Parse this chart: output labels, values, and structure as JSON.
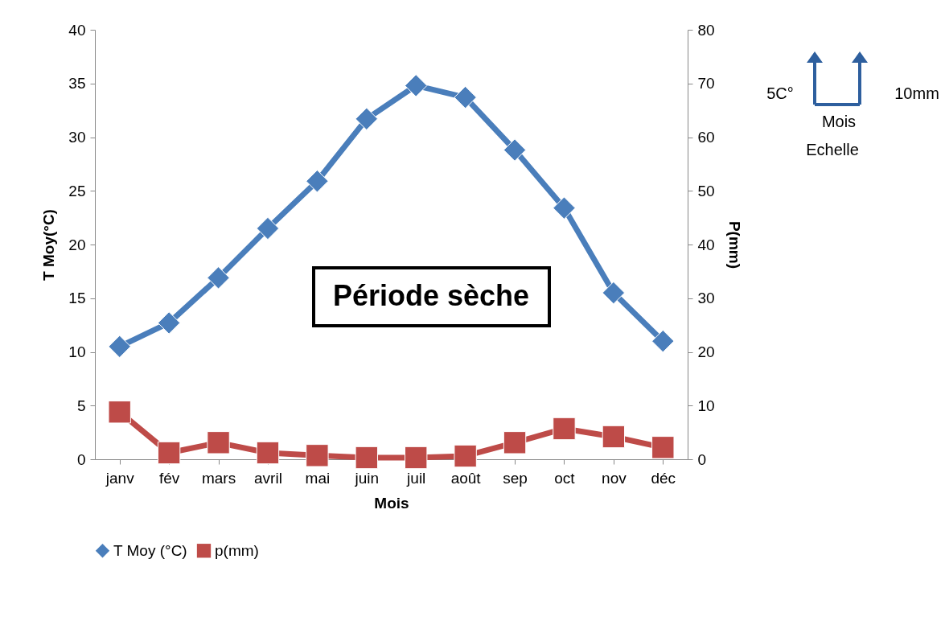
{
  "chart_data": {
    "type": "line",
    "xlabel": "Mois",
    "ylabel": "T Moy(°C)",
    "y2label": "P(mm)",
    "categories": [
      "janv",
      "fév",
      "mars",
      "avril",
      "mai",
      "juin",
      "juil",
      "août",
      "sep",
      "oct",
      "nov",
      "déc"
    ],
    "series": [
      {
        "name": "T Moy (°C)",
        "color": "#4a7ebb",
        "marker": "diamond",
        "values": [
          10.5,
          12.7,
          16.9,
          21.5,
          25.9,
          31.7,
          34.8,
          33.7,
          28.8,
          23.4,
          15.5,
          11.0
        ]
      },
      {
        "name": "p(mm)",
        "color": "#be4b48",
        "marker": "square",
        "axis": "y2",
        "values": [
          8.8,
          1.2,
          3.1,
          1.2,
          0.7,
          0.3,
          0.3,
          0.6,
          3.1,
          5.7,
          4.2,
          2.2
        ]
      }
    ],
    "ylim": [
      0,
      40
    ],
    "yticks": [
      0,
      5,
      10,
      15,
      20,
      25,
      30,
      35,
      40
    ],
    "y2lim": [
      0,
      80
    ],
    "y2ticks": [
      0,
      10,
      20,
      30,
      40,
      50,
      60,
      70,
      80
    ],
    "grid": false,
    "legend": "bottom",
    "annotations": [
      "Période sèche",
      "5C°",
      "10mm",
      "Mois",
      "Echelle"
    ]
  }
}
